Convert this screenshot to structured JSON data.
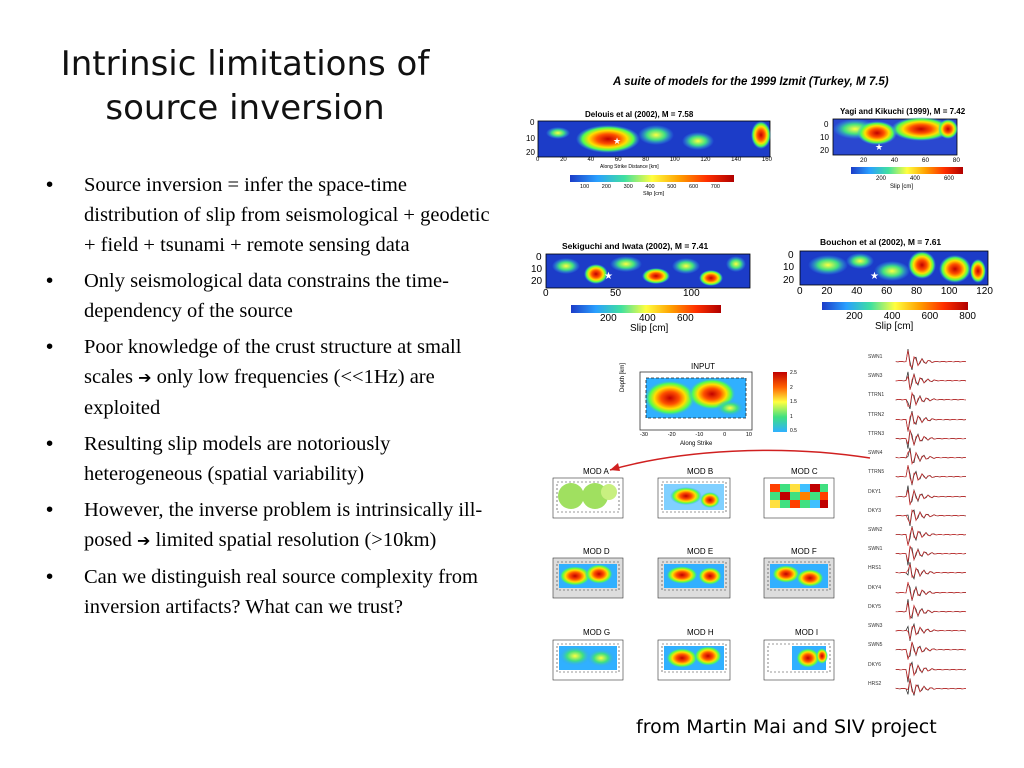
{
  "slide": {
    "title": "Intrinsic limitations of source inversion",
    "bullets": [
      {
        "text": "Source inversion = infer the space-time distribution of slip from seismological + geodetic + field + tsunami + remote sensing data"
      },
      {
        "text": "Only seismological data constrains the time-dependency of the source"
      },
      {
        "pre": "Poor knowledge of the crust structure at small scales ",
        "arrow": "➔",
        "post": " only low frequencies (<<1Hz) are exploited"
      },
      {
        "text": "Resulting slip models are notoriously heterogeneous (spatial variability)"
      },
      {
        "pre": "However, the inverse problem is intrinsically ill-posed ",
        "arrow": "➔",
        "post": " limited spatial resolution (>10km)"
      },
      {
        "text": "Can we distinguish real source complexity from inversion artifacts? What can we trust?"
      }
    ],
    "caption": "from Martin Mai and SIV project"
  },
  "figure": {
    "suite_title": "A suite of models for the 1999 Izmit (Turkey, M 7.5)",
    "models": [
      {
        "label": "Delouis et al (2002), M = 7.58",
        "xticks": [
          "0",
          "20",
          "40",
          "60",
          "80",
          "100",
          "120",
          "140",
          "160"
        ],
        "xlabel": "Along Strike Distance [km]",
        "yticks": [
          "0",
          "10",
          "20"
        ],
        "cbar_ticks": [
          "100",
          "200",
          "300",
          "400",
          "500",
          "600",
          "700"
        ],
        "cbar_label": "Slip [cm]"
      },
      {
        "label": "Yagi and Kikuchi (1999), M = 7.42",
        "xticks": [
          "20",
          "40",
          "60",
          "80"
        ],
        "yticks": [
          "0",
          "10",
          "20"
        ],
        "cbar_ticks": [
          "200",
          "400",
          "600"
        ],
        "cbar_label": "Slip [cm]"
      },
      {
        "label": "Sekiguchi and Iwata (2002), M = 7.41",
        "xticks": [
          "0",
          "50",
          "100"
        ],
        "yticks": [
          "0",
          "10",
          "20"
        ],
        "cbar_ticks": [
          "200",
          "400",
          "600"
        ],
        "cbar_label": "Slip [cm]"
      },
      {
        "label": "Bouchon et al (2002), M = 7.61",
        "xticks": [
          "0",
          "20",
          "40",
          "60",
          "80",
          "100",
          "120"
        ],
        "yticks": [
          "0",
          "10",
          "20"
        ],
        "cbar_ticks": [
          "200",
          "400",
          "600",
          "800"
        ],
        "cbar_label": "Slip [cm]"
      }
    ],
    "siv": {
      "input_label": "INPUT",
      "input_ylabel": "Depth [km]",
      "input_xlabel": "Along Strike",
      "input_xticks": [
        "-30",
        "-20",
        "-10",
        "0",
        "10"
      ],
      "input_cbar_ticks": [
        "2.5",
        "2",
        "1.5",
        "1",
        "0.5"
      ],
      "panels": [
        "MOD A",
        "MOD B",
        "MOD C",
        "MOD D",
        "MOD E",
        "MOD F",
        "MOD G",
        "MOD H",
        "MOD I"
      ],
      "stations": [
        "SWN1",
        "SWN3",
        "TTRN1",
        "TTRN2",
        "TTRN3",
        "SWN4",
        "TTRN5",
        "DKY1",
        "DKY3",
        "SWN2",
        "SWN1",
        "HRS1",
        "DKY4",
        "DKY5",
        "SWN3",
        "SWN5",
        "DKY6",
        "HRS2"
      ]
    }
  }
}
